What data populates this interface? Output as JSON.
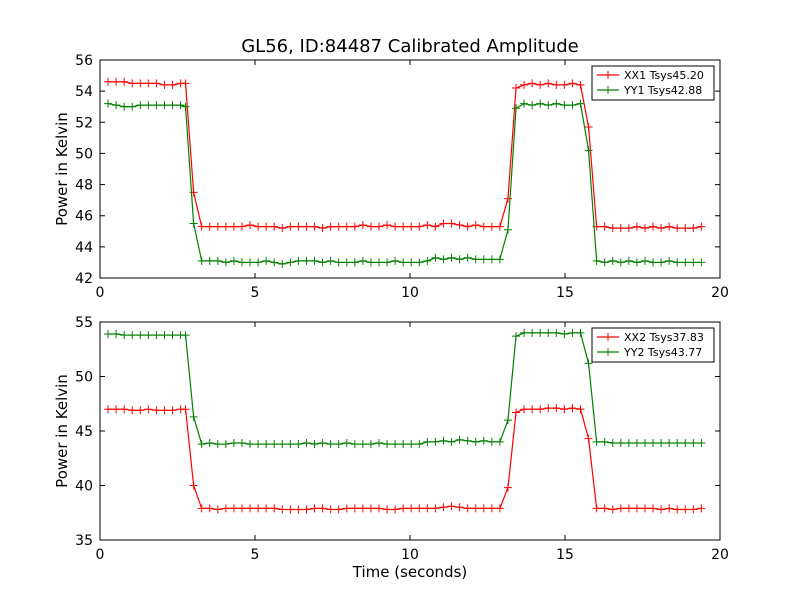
{
  "chart_data": [
    {
      "type": "line",
      "title": "GL56, ID:84487 Calibrated Amplitude",
      "xlabel": "",
      "ylabel": "Power in Kelvin",
      "xlim": [
        0,
        20
      ],
      "ylim": [
        42,
        56
      ],
      "xticks": [
        "0",
        "5",
        "10",
        "15",
        "20"
      ],
      "yticks": [
        "42",
        "44",
        "46",
        "48",
        "50",
        "52",
        "54",
        "56"
      ],
      "legend_position": "top-right",
      "x": [
        0.26,
        0.52,
        0.78,
        1.04,
        1.3,
        1.56,
        1.82,
        2.08,
        2.34,
        2.6,
        2.76,
        3.02,
        3.28,
        3.54,
        3.8,
        4.06,
        4.32,
        4.58,
        4.84,
        5.1,
        5.36,
        5.62,
        5.88,
        6.14,
        6.4,
        6.66,
        6.92,
        7.18,
        7.44,
        7.7,
        7.96,
        8.22,
        8.48,
        8.74,
        9.0,
        9.26,
        9.52,
        9.78,
        10.04,
        10.3,
        10.56,
        10.82,
        11.08,
        11.34,
        11.6,
        11.86,
        12.12,
        12.38,
        12.64,
        12.9,
        13.16,
        13.42,
        13.68,
        13.94,
        14.2,
        14.46,
        14.72,
        14.98,
        15.24,
        15.5,
        15.76,
        16.02,
        16.28,
        16.54,
        16.8,
        17.06,
        17.32,
        17.58,
        17.84,
        18.1,
        18.36,
        18.62,
        18.88,
        19.14,
        19.4
      ],
      "series": [
        {
          "name": "XX1 Tsys45.20",
          "color": "#ff0000",
          "values": [
            54.6,
            54.6,
            54.6,
            54.5,
            54.5,
            54.5,
            54.5,
            54.4,
            54.4,
            54.5,
            54.5,
            47.5,
            45.3,
            45.3,
            45.3,
            45.3,
            45.3,
            45.3,
            45.4,
            45.3,
            45.3,
            45.3,
            45.2,
            45.3,
            45.3,
            45.3,
            45.3,
            45.2,
            45.3,
            45.3,
            45.3,
            45.3,
            45.4,
            45.3,
            45.3,
            45.4,
            45.3,
            45.3,
            45.3,
            45.3,
            45.4,
            45.3,
            45.5,
            45.5,
            45.4,
            45.3,
            45.4,
            45.3,
            45.3,
            45.3,
            47.1,
            54.2,
            54.4,
            54.5,
            54.4,
            54.5,
            54.4,
            54.4,
            54.5,
            54.4,
            51.7,
            45.3,
            45.3,
            45.2,
            45.2,
            45.2,
            45.3,
            45.2,
            45.3,
            45.2,
            45.3,
            45.2,
            45.2,
            45.2,
            45.3
          ]
        },
        {
          "name": "YY1 Tsys42.88",
          "color": "#008000",
          "values": [
            53.2,
            53.1,
            53.0,
            53.0,
            53.1,
            53.1,
            53.1,
            53.1,
            53.1,
            53.1,
            53.0,
            45.5,
            43.1,
            43.1,
            43.1,
            43.0,
            43.1,
            43.0,
            43.0,
            43.0,
            43.1,
            43.0,
            42.9,
            43.0,
            43.1,
            43.1,
            43.1,
            43.0,
            43.1,
            43.0,
            43.0,
            43.0,
            43.1,
            43.0,
            43.0,
            43.0,
            43.1,
            43.0,
            43.0,
            43.0,
            43.1,
            43.3,
            43.2,
            43.3,
            43.2,
            43.3,
            43.2,
            43.2,
            43.2,
            43.2,
            45.1,
            52.9,
            53.2,
            53.1,
            53.2,
            53.1,
            53.2,
            53.1,
            53.1,
            53.2,
            50.2,
            43.1,
            43.0,
            43.1,
            43.0,
            43.1,
            43.0,
            43.1,
            43.0,
            43.0,
            43.1,
            43.0,
            43.0,
            43.0,
            43.0
          ]
        }
      ]
    },
    {
      "type": "line",
      "title": "",
      "xlabel": "Time (seconds)",
      "ylabel": "Power in Kelvin",
      "xlim": [
        0,
        20
      ],
      "ylim": [
        35,
        55
      ],
      "xticks": [
        "0",
        "5",
        "10",
        "15",
        "20"
      ],
      "yticks": [
        "35",
        "40",
        "45",
        "50",
        "55"
      ],
      "legend_position": "top-right",
      "x": [
        0.26,
        0.52,
        0.78,
        1.04,
        1.3,
        1.56,
        1.82,
        2.08,
        2.34,
        2.6,
        2.76,
        3.02,
        3.28,
        3.54,
        3.8,
        4.06,
        4.32,
        4.58,
        4.84,
        5.1,
        5.36,
        5.62,
        5.88,
        6.14,
        6.4,
        6.66,
        6.92,
        7.18,
        7.44,
        7.7,
        7.96,
        8.22,
        8.48,
        8.74,
        9.0,
        9.26,
        9.52,
        9.78,
        10.04,
        10.3,
        10.56,
        10.82,
        11.08,
        11.34,
        11.6,
        11.86,
        12.12,
        12.38,
        12.64,
        12.9,
        13.16,
        13.42,
        13.68,
        13.94,
        14.2,
        14.46,
        14.72,
        14.98,
        15.24,
        15.5,
        15.76,
        16.02,
        16.28,
        16.54,
        16.8,
        17.06,
        17.32,
        17.58,
        17.84,
        18.1,
        18.36,
        18.62,
        18.88,
        19.14,
        19.4
      ],
      "series": [
        {
          "name": "XX2 Tsys37.83",
          "color": "#ff0000",
          "values": [
            47.0,
            47.0,
            47.0,
            46.9,
            46.9,
            47.0,
            46.9,
            46.9,
            46.9,
            47.0,
            47.0,
            40.0,
            37.9,
            37.9,
            37.8,
            37.9,
            37.9,
            37.9,
            37.9,
            37.9,
            37.9,
            37.9,
            37.8,
            37.8,
            37.8,
            37.8,
            37.9,
            37.9,
            37.8,
            37.8,
            37.9,
            37.9,
            37.9,
            37.9,
            37.9,
            37.8,
            37.8,
            37.9,
            37.9,
            37.9,
            37.9,
            37.9,
            38.0,
            38.1,
            38.0,
            37.9,
            37.9,
            37.9,
            37.9,
            37.9,
            39.8,
            46.7,
            47.0,
            47.0,
            47.0,
            47.1,
            47.1,
            47.0,
            47.1,
            47.0,
            44.3,
            37.9,
            37.9,
            37.8,
            37.9,
            37.9,
            37.9,
            37.9,
            37.9,
            37.8,
            37.9,
            37.8,
            37.8,
            37.8,
            37.9
          ]
        },
        {
          "name": "YY2 Tsys43.77",
          "color": "#008000",
          "values": [
            53.9,
            53.9,
            53.8,
            53.8,
            53.8,
            53.8,
            53.8,
            53.8,
            53.8,
            53.8,
            53.8,
            46.3,
            43.8,
            43.9,
            43.8,
            43.8,
            43.9,
            43.9,
            43.8,
            43.8,
            43.8,
            43.8,
            43.8,
            43.8,
            43.8,
            43.9,
            43.8,
            43.9,
            43.8,
            43.8,
            43.9,
            43.8,
            43.8,
            43.8,
            43.9,
            43.8,
            43.8,
            43.8,
            43.8,
            43.8,
            44.0,
            44.0,
            44.1,
            44.0,
            44.2,
            44.1,
            44.0,
            44.1,
            44.0,
            44.0,
            46.0,
            53.7,
            54.0,
            54.0,
            54.0,
            54.0,
            54.0,
            53.9,
            54.0,
            54.0,
            51.2,
            44.0,
            44.0,
            43.9,
            43.9,
            43.9,
            43.9,
            43.9,
            43.9,
            43.9,
            43.9,
            43.9,
            43.9,
            43.9,
            43.9
          ]
        }
      ]
    }
  ]
}
